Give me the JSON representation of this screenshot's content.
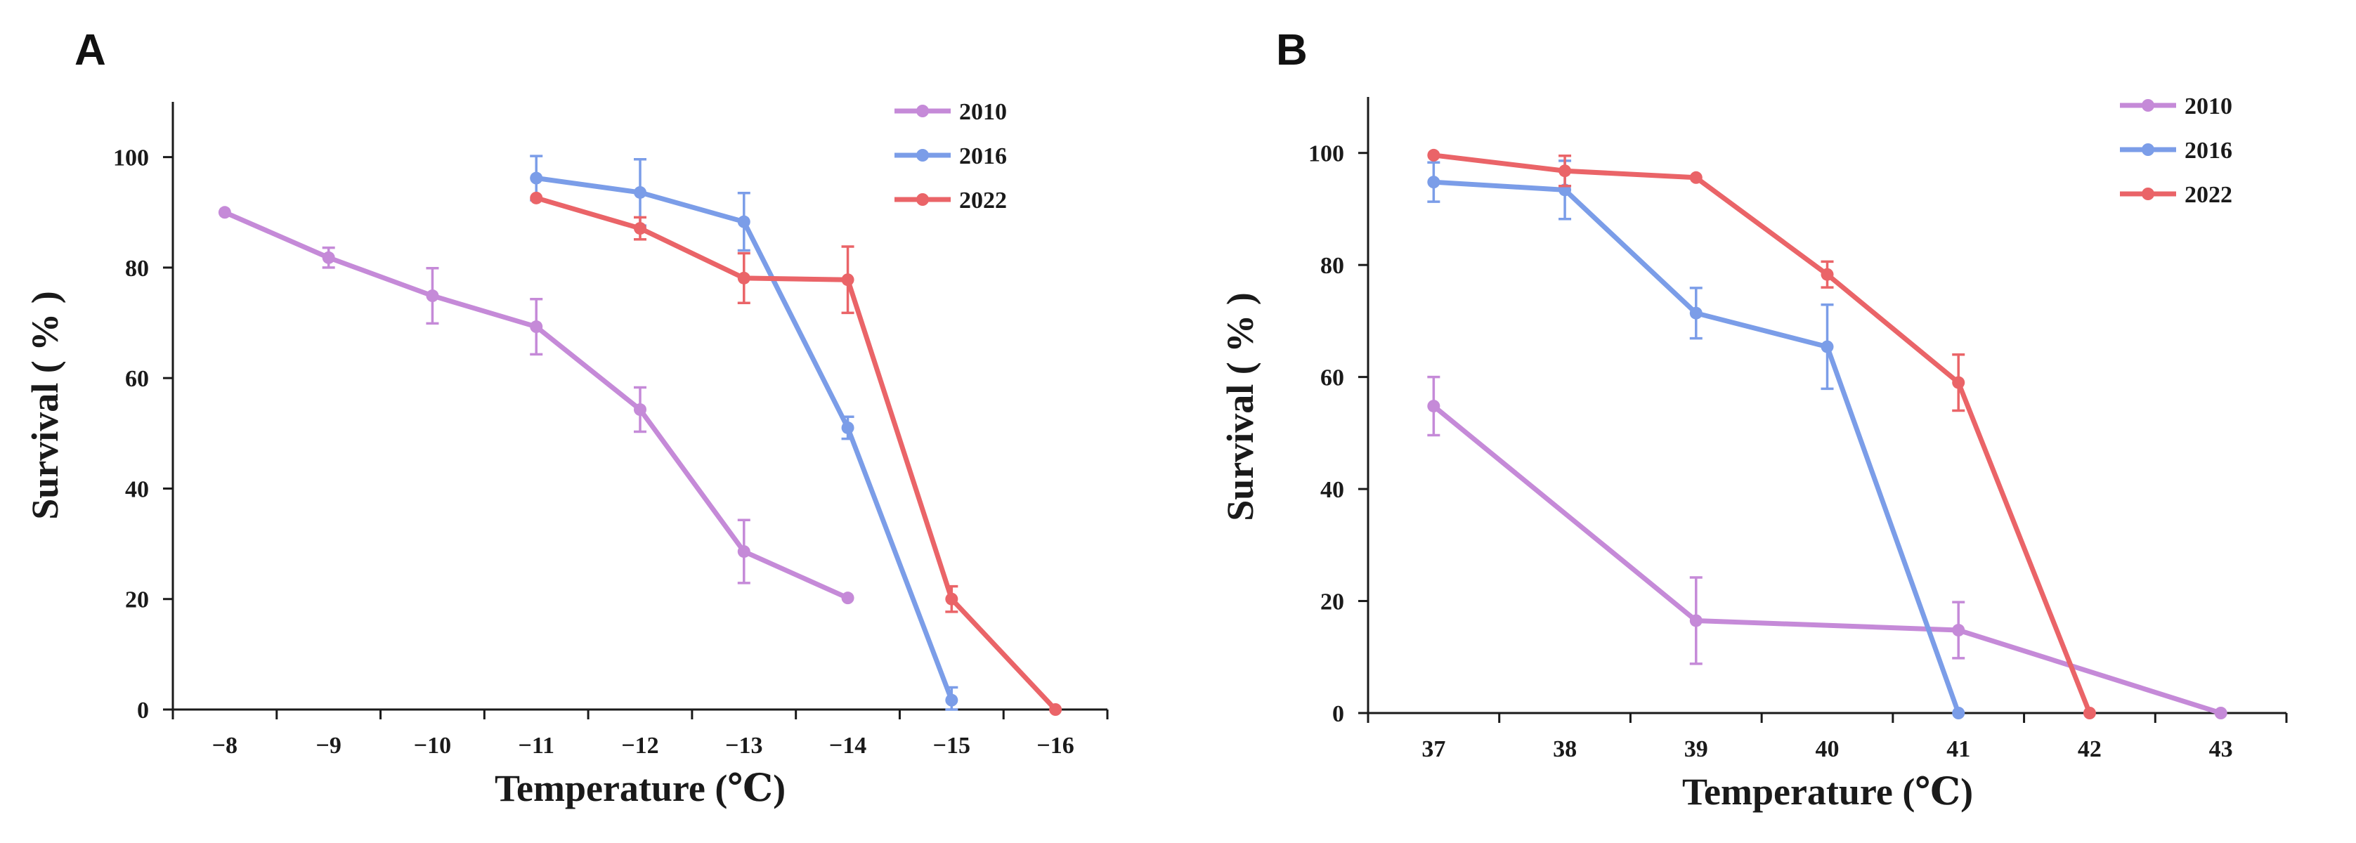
{
  "chart_data": [
    {
      "panel_label": "A",
      "type": "line",
      "xlabel": "Temperature (℃)",
      "ylabel": "Survival ( % )",
      "categories": [
        "−8",
        "−9",
        "−10",
        "−11",
        "−12",
        "−13",
        "−14",
        "−15",
        "−16"
      ],
      "ylim": [
        0,
        110
      ],
      "yticks": [
        0,
        20,
        40,
        60,
        80,
        100
      ],
      "legend_position": "top-right",
      "series": [
        {
          "name": "2010",
          "color": "#c58ad8",
          "values": [
            90,
            81.8,
            74.9,
            69.3,
            54.3,
            28.6,
            20.2,
            null,
            null
          ],
          "errors": [
            0,
            1.8,
            5,
            5,
            4,
            5.7,
            0,
            null,
            null
          ]
        },
        {
          "name": "2016",
          "color": "#7b9de8",
          "values": [
            null,
            null,
            null,
            96.2,
            93.6,
            88.3,
            51,
            1.7,
            null
          ],
          "errors": [
            null,
            null,
            null,
            4,
            6,
            5.2,
            2,
            2.3,
            null
          ]
        },
        {
          "name": "2022",
          "color": "#ea6468",
          "values": [
            null,
            null,
            null,
            92.6,
            87.1,
            78.1,
            77.8,
            20,
            0
          ],
          "errors": [
            null,
            null,
            null,
            0,
            2,
            4.5,
            6,
            2.3,
            0
          ]
        }
      ]
    },
    {
      "panel_label": "B",
      "type": "line",
      "xlabel": "Temperature (℃)",
      "ylabel": "Survival ( % )",
      "categories": [
        "37",
        "38",
        "39",
        "40",
        "41",
        "42",
        "43"
      ],
      "ylim": [
        0,
        110
      ],
      "yticks": [
        0,
        20,
        40,
        60,
        80,
        100
      ],
      "legend_position": "top-right",
      "series": [
        {
          "name": "2010",
          "color": "#c58ad8",
          "values": [
            54.8,
            null,
            16.5,
            null,
            14.8,
            null,
            0
          ],
          "errors": [
            5.2,
            null,
            7.7,
            null,
            5,
            null,
            0
          ]
        },
        {
          "name": "2016",
          "color": "#7b9de8",
          "values": [
            94.8,
            93.4,
            71.4,
            65.4,
            0,
            null,
            null
          ],
          "errors": [
            3.5,
            5.2,
            4.5,
            7.5,
            0,
            null,
            null
          ]
        },
        {
          "name": "2022",
          "color": "#ea6468",
          "values": [
            99.6,
            96.8,
            95.6,
            78.3,
            59,
            0,
            null
          ],
          "errors": [
            0,
            2.7,
            0,
            2.3,
            5,
            0,
            null
          ]
        }
      ]
    }
  ]
}
